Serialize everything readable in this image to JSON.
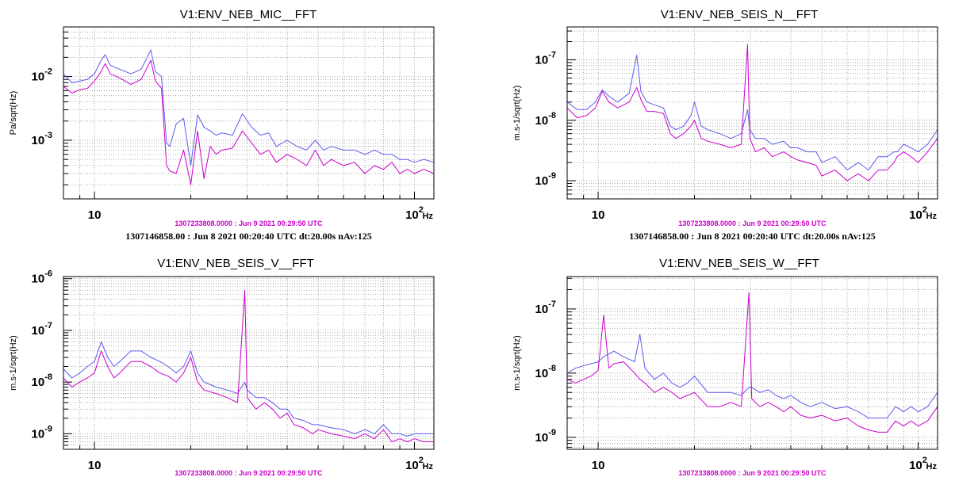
{
  "colors": {
    "current": "#cc00cc",
    "reference": "#5b5bf0",
    "grid": "#888888",
    "axis": "#000000",
    "stamp": "#cc00cc"
  },
  "chart_data": [
    {
      "type": "line",
      "title": "V1:ENV_NEB_MIC__FFT",
      "ylabel": "Pa/sqrt(Hz)",
      "xunit": "Hz",
      "xscale": "log",
      "yscale": "log",
      "xlim": [
        8,
        115
      ],
      "ylim": [
        0.00012,
        0.06
      ],
      "xticks": [
        {
          "value": 10,
          "label": "10"
        },
        {
          "value": 100,
          "label": "10",
          "sup": "2"
        }
      ],
      "yticks": [
        {
          "value": 0.01,
          "label": "10",
          "sup": "-2"
        },
        {
          "value": 0.001,
          "label": "10",
          "sup": "-3"
        }
      ],
      "timestamp": "1307233808.0000 : Jun  9 2021 00:29:50 UTC",
      "reference_info": "1307146858.00 : Jun  8 2021 00:20:40 UTC dt:20.00s nAv:125",
      "series": [
        {
          "name": "current",
          "color": "#cc00cc",
          "x": [
            8,
            8.5,
            9,
            9.5,
            10,
            10.5,
            10.8,
            11.2,
            12,
            13,
            14,
            15,
            15.5,
            16.2,
            16.8,
            17.2,
            18,
            19,
            20,
            21,
            22,
            23,
            24,
            25,
            27,
            29,
            31,
            33,
            35,
            37,
            40,
            43,
            46,
            49,
            52,
            55,
            60,
            65,
            70,
            75,
            80,
            85,
            90,
            95,
            100,
            107,
            115
          ],
          "values": [
            0.007,
            0.0055,
            0.0062,
            0.0065,
            0.0085,
            0.012,
            0.016,
            0.011,
            0.0095,
            0.0075,
            0.009,
            0.018,
            0.0085,
            0.0065,
            0.0004,
            0.00033,
            0.0003,
            0.0007,
            0.0002,
            0.0014,
            0.00025,
            0.0008,
            0.0006,
            0.0007,
            0.00075,
            0.0014,
            0.0009,
            0.0006,
            0.0007,
            0.00045,
            0.0006,
            0.0005,
            0.0004,
            0.0007,
            0.0004,
            0.0005,
            0.0004,
            0.00045,
            0.0003,
            0.0004,
            0.00035,
            0.00045,
            0.0003,
            0.00035,
            0.0003,
            0.00035,
            0.0003
          ]
        },
        {
          "name": "reference",
          "color": "#5b5bf0",
          "x": [
            8,
            8.5,
            9,
            9.5,
            10,
            10.5,
            10.8,
            11.2,
            12,
            13,
            14,
            15,
            15.5,
            16.2,
            16.8,
            17.2,
            18,
            19,
            20,
            21,
            22,
            23,
            24,
            25,
            27,
            29,
            31,
            33,
            35,
            37,
            40,
            43,
            46,
            49,
            52,
            55,
            60,
            65,
            70,
            75,
            80,
            85,
            90,
            95,
            100,
            107,
            115
          ],
          "values": [
            0.011,
            0.008,
            0.0085,
            0.009,
            0.011,
            0.018,
            0.022,
            0.015,
            0.013,
            0.011,
            0.013,
            0.026,
            0.012,
            0.01,
            0.0009,
            0.0008,
            0.0018,
            0.0022,
            0.0004,
            0.0025,
            0.0016,
            0.0014,
            0.0012,
            0.0013,
            0.0012,
            0.0026,
            0.0016,
            0.0012,
            0.0013,
            0.0008,
            0.001,
            0.0008,
            0.0007,
            0.001,
            0.0007,
            0.0008,
            0.0007,
            0.0007,
            0.0006,
            0.0007,
            0.0006,
            0.0006,
            0.0005,
            0.0005,
            0.00045,
            0.0005,
            0.00045
          ]
        }
      ]
    },
    {
      "type": "line",
      "title": "V1:ENV_NEB_SEIS_N__FFT",
      "ylabel": "m.s-1/sqrt(Hz)",
      "xunit": "Hz",
      "xscale": "log",
      "yscale": "log",
      "xlim": [
        8,
        115
      ],
      "ylim": [
        5e-10,
        3.5e-07
      ],
      "xticks": [
        {
          "value": 10,
          "label": "10"
        },
        {
          "value": 100,
          "label": "10",
          "sup": "2"
        }
      ],
      "yticks": [
        {
          "value": 1e-07,
          "label": "10",
          "sup": "-7"
        },
        {
          "value": 1e-08,
          "label": "10",
          "sup": "-8"
        },
        {
          "value": 1e-09,
          "label": "10",
          "sup": "-9"
        }
      ],
      "timestamp": "1307233808.0000 : Jun  9 2021 00:29:50 UTC",
      "reference_info": "1307146858.00 : Jun  8 2021 00:20:40 UTC dt:20.00s nAv:125",
      "series": [
        {
          "name": "current",
          "color": "#cc00cc",
          "x": [
            8,
            8.6,
            9.2,
            9.8,
            10.3,
            10.8,
            11.5,
            12.5,
            13.2,
            13.6,
            14.2,
            15,
            16,
            16.8,
            17.5,
            18.5,
            19.5,
            20,
            21,
            22,
            24,
            26,
            28,
            29.3,
            29.8,
            31,
            33,
            35,
            38,
            40,
            42,
            45,
            48,
            50,
            55,
            60,
            65,
            70,
            75,
            80,
            84,
            86,
            90,
            95,
            100,
            107,
            115
          ],
          "values": [
            1.6e-08,
            1.1e-08,
            1.2e-08,
            1.6e-08,
            3e-08,
            2e-08,
            1.6e-08,
            2e-08,
            3.5e-08,
            2.2e-08,
            1.4e-08,
            1.4e-08,
            1.3e-08,
            6e-09,
            5e-09,
            6e-09,
            8e-09,
            1e-08,
            5e-09,
            4.5e-09,
            4e-09,
            3.5e-09,
            4e-09,
            1.8e-07,
            5e-09,
            3e-09,
            3.5e-09,
            2.5e-09,
            3e-09,
            2.5e-09,
            2.2e-09,
            2e-09,
            1.8e-09,
            1.2e-09,
            1.5e-09,
            1e-09,
            1.3e-09,
            1e-09,
            1.5e-09,
            1.5e-09,
            2e-09,
            2.5e-09,
            3e-09,
            2.5e-09,
            2e-09,
            3e-09,
            5e-09
          ]
        },
        {
          "name": "reference",
          "color": "#5b5bf0",
          "x": [
            8,
            8.6,
            9.2,
            9.8,
            10.3,
            10.8,
            11.5,
            12.5,
            13.2,
            13.6,
            14.2,
            15,
            16,
            16.8,
            17.5,
            18.5,
            19.5,
            20,
            21,
            22,
            24,
            26,
            28,
            29.3,
            29.8,
            31,
            33,
            35,
            38,
            40,
            42,
            45,
            48,
            50,
            55,
            60,
            65,
            70,
            75,
            80,
            84,
            86,
            90,
            95,
            100,
            107,
            115
          ],
          "values": [
            2e-08,
            1.5e-08,
            1.5e-08,
            2e-08,
            3.2e-08,
            2.5e-08,
            2e-08,
            2.8e-08,
            1.2e-07,
            3e-08,
            2e-08,
            1.8e-08,
            1.6e-08,
            8e-09,
            7e-09,
            8e-09,
            1.2e-08,
            2e-08,
            8e-09,
            7e-09,
            6e-09,
            5e-09,
            6e-09,
            1.5e-08,
            7e-09,
            5e-09,
            5e-09,
            4e-09,
            4.5e-09,
            3.5e-09,
            3.5e-09,
            3e-09,
            3e-09,
            2e-09,
            2.5e-09,
            1.5e-09,
            2e-09,
            1.5e-09,
            2.5e-09,
            2.5e-09,
            3e-09,
            3e-09,
            4e-09,
            3.5e-09,
            3e-09,
            4e-09,
            7e-09
          ]
        }
      ]
    },
    {
      "type": "line",
      "title": "V1:ENV_NEB_SEIS_V__FFT",
      "ylabel": "m.s-1/sqrt(Hz)",
      "xunit": "Hz",
      "xscale": "log",
      "yscale": "log",
      "xlim": [
        8,
        115
      ],
      "ylim": [
        5e-10,
        1.1e-06
      ],
      "xticks": [
        {
          "value": 10,
          "label": "10"
        },
        {
          "value": 100,
          "label": "10",
          "sup": "2"
        }
      ],
      "yticks": [
        {
          "value": 1e-06,
          "label": "10",
          "sup": "-6"
        },
        {
          "value": 1e-07,
          "label": "10",
          "sup": "-7"
        },
        {
          "value": 1e-08,
          "label": "10",
          "sup": "-8"
        },
        {
          "value": 1e-09,
          "label": "10",
          "sup": "-9"
        }
      ],
      "timestamp": "1307233808.0000 : Jun  9 2021 00:29:50 UTC",
      "reference_info": "",
      "series": [
        {
          "name": "current",
          "color": "#cc00cc",
          "x": [
            8,
            8.5,
            9,
            9.5,
            10,
            10.5,
            11,
            11.5,
            12,
            13,
            14,
            15,
            16,
            17,
            18,
            19,
            20,
            21,
            22,
            24,
            26,
            28,
            29.5,
            30,
            32,
            34,
            36,
            38,
            40,
            42,
            45,
            48,
            50,
            55,
            60,
            65,
            70,
            75,
            80,
            85,
            90,
            95,
            100,
            107,
            115
          ],
          "values": [
            1.2e-08,
            8e-09,
            1e-08,
            1.2e-08,
            1.5e-08,
            4e-08,
            2e-08,
            1.2e-08,
            1.5e-08,
            2.5e-08,
            2.5e-08,
            2e-08,
            1.5e-08,
            1.3e-08,
            1e-08,
            1.5e-08,
            3e-08,
            1e-08,
            7e-09,
            6e-09,
            5e-09,
            4e-09,
            6e-07,
            5e-09,
            3e-09,
            4e-09,
            3e-09,
            2e-09,
            2.5e-09,
            1.5e-09,
            1.3e-09,
            1e-09,
            1.2e-09,
            1e-09,
            9e-10,
            8e-10,
            1e-09,
            8e-10,
            1.2e-09,
            7e-10,
            8e-10,
            7e-10,
            8e-10,
            7e-10,
            7e-10
          ]
        },
        {
          "name": "reference",
          "color": "#5b5bf0",
          "x": [
            8,
            8.5,
            9,
            9.5,
            10,
            10.5,
            11,
            11.5,
            12,
            13,
            14,
            15,
            16,
            17,
            18,
            19,
            20,
            21,
            22,
            24,
            26,
            28,
            29.5,
            30,
            32,
            34,
            36,
            38,
            40,
            42,
            45,
            48,
            50,
            55,
            60,
            65,
            70,
            75,
            80,
            85,
            90,
            95,
            100,
            107,
            115
          ],
          "values": [
            1.8e-08,
            1.2e-08,
            1.5e-08,
            2e-08,
            2.5e-08,
            6e-08,
            3e-08,
            2e-08,
            2.5e-08,
            4e-08,
            4e-08,
            3e-08,
            2.5e-08,
            2e-08,
            1.5e-08,
            2e-08,
            4e-08,
            1.5e-08,
            1e-08,
            8e-09,
            7e-09,
            6e-09,
            1e-08,
            7e-09,
            5e-09,
            5e-09,
            4e-09,
            3e-09,
            3e-09,
            2e-09,
            1.8e-09,
            1.5e-09,
            1.5e-09,
            1.3e-09,
            1.2e-09,
            1e-09,
            1.2e-09,
            1e-09,
            1.5e-09,
            1e-09,
            1e-09,
            9e-10,
            1e-09,
            1e-09,
            1e-09
          ]
        }
      ]
    },
    {
      "type": "line",
      "title": "V1:ENV_NEB_SEIS_W__FFT",
      "ylabel": "m.s-1/sqrt(Hz)",
      "xunit": "Hz",
      "xscale": "log",
      "yscale": "log",
      "xlim": [
        8,
        115
      ],
      "ylim": [
        6.5e-10,
        3.2e-07
      ],
      "xticks": [
        {
          "value": 10,
          "label": "10"
        },
        {
          "value": 100,
          "label": "10",
          "sup": "2"
        }
      ],
      "yticks": [
        {
          "value": 1e-07,
          "label": "10",
          "sup": "-7"
        },
        {
          "value": 1e-08,
          "label": "10",
          "sup": "-8"
        },
        {
          "value": 1e-09,
          "label": "10",
          "sup": "-9"
        }
      ],
      "timestamp": "1307233808.0000 : Jun  9 2021 00:29:50 UTC",
      "reference_info": "",
      "series": [
        {
          "name": "current",
          "color": "#cc00cc",
          "x": [
            8,
            8.5,
            9,
            9.5,
            10,
            10.4,
            10.8,
            11.2,
            12,
            13,
            13.5,
            14,
            15,
            16,
            17,
            18,
            19,
            20,
            22,
            24,
            26,
            28,
            29.6,
            30.2,
            32,
            34,
            36,
            38,
            40,
            43,
            46,
            50,
            55,
            60,
            65,
            70,
            75,
            80,
            85,
            90,
            95,
            100,
            107,
            115
          ],
          "values": [
            8e-09,
            7e-09,
            8e-09,
            9e-09,
            1.1e-08,
            8e-08,
            1.2e-08,
            1.4e-08,
            1.5e-08,
            1e-08,
            8e-09,
            7e-09,
            5e-09,
            6e-09,
            5e-09,
            4e-09,
            4.5e-09,
            5e-09,
            3e-09,
            3e-09,
            3.5e-09,
            3e-09,
            1.8e-07,
            4e-09,
            3e-09,
            3.5e-09,
            3e-09,
            2.5e-09,
            3e-09,
            2.2e-09,
            2e-09,
            2.2e-09,
            1.8e-09,
            2e-09,
            1.5e-09,
            1.3e-09,
            1.2e-09,
            1.2e-09,
            1.8e-09,
            1.5e-09,
            1.8e-09,
            1.5e-09,
            1.8e-09,
            3e-09
          ]
        },
        {
          "name": "reference",
          "color": "#5b5bf0",
          "x": [
            8,
            8.5,
            9,
            9.5,
            10,
            10.4,
            10.8,
            11.2,
            12,
            13,
            13.5,
            14,
            15,
            16,
            17,
            18,
            19,
            20,
            22,
            24,
            26,
            28,
            29.6,
            30.2,
            32,
            34,
            36,
            38,
            40,
            43,
            46,
            50,
            55,
            60,
            65,
            70,
            75,
            80,
            85,
            90,
            95,
            100,
            107,
            115
          ],
          "values": [
            1e-08,
            1.2e-08,
            1.3e-08,
            1.4e-08,
            1.5e-08,
            1.8e-08,
            2e-08,
            2.2e-08,
            1.8e-08,
            1.5e-08,
            4e-08,
            1.2e-08,
            8e-09,
            1e-08,
            7e-09,
            6e-09,
            7e-09,
            9e-09,
            5e-09,
            5e-09,
            5e-09,
            4.5e-09,
            6e-09,
            6e-09,
            5e-09,
            5.5e-09,
            4.5e-09,
            4e-09,
            4.5e-09,
            3.5e-09,
            3e-09,
            3.5e-09,
            2.8e-09,
            3e-09,
            2.5e-09,
            2e-09,
            2e-09,
            2e-09,
            3e-09,
            2.5e-09,
            3e-09,
            2.5e-09,
            3e-09,
            5e-09
          ]
        }
      ]
    }
  ]
}
